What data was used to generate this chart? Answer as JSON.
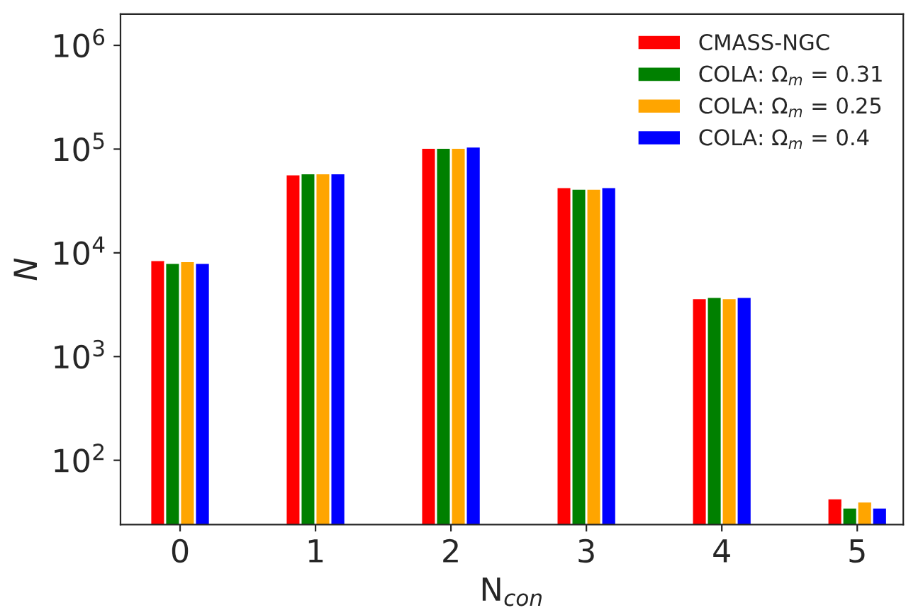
{
  "chart_data": {
    "type": "bar",
    "xlabel": "N$_{con}$",
    "ylabel": "N",
    "categories": [
      "0",
      "1",
      "2",
      "3",
      "4",
      "5"
    ],
    "series": [
      {
        "name": "CMASS-NGC",
        "color": "#ff0000",
        "values": [
          8500,
          57000,
          103000,
          43000,
          3650,
          43
        ]
      },
      {
        "name": "COLA: Ω$_{m}$ = 0.31",
        "color": "#008000",
        "values": [
          8000,
          58500,
          103000,
          41500,
          3750,
          35
        ]
      },
      {
        "name": "COLA: Ω$_{m}$ = 0.25",
        "color": "#ffa500",
        "values": [
          8300,
          58500,
          103000,
          41500,
          3650,
          40
        ]
      },
      {
        "name": "COLA: Ω$_{m}$ = 0.4",
        "color": "#0000ff",
        "values": [
          8000,
          58500,
          106000,
          43000,
          3750,
          35
        ]
      }
    ],
    "log": "y",
    "ylim": [
      24,
      2000000
    ],
    "yticks": [
      {
        "value": 100,
        "label": "10$^{2}$"
      },
      {
        "value": 1000,
        "label": "10$^{3}$"
      },
      {
        "value": 10000,
        "label": "10$^{4}$"
      },
      {
        "value": 100000,
        "label": "10$^{5}$"
      },
      {
        "value": 1000000,
        "label": "10$^{6}$"
      }
    ],
    "legend": "top right",
    "grid": false
  }
}
